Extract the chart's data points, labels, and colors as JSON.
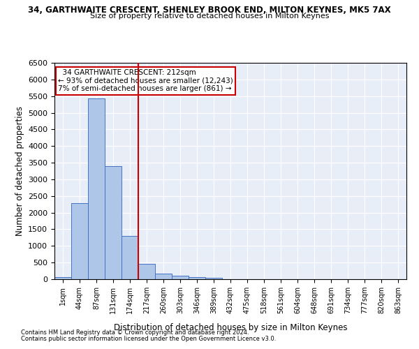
{
  "title_line1": "34, GARTHWAITE CRESCENT, SHENLEY BROOK END, MILTON KEYNES, MK5 7AX",
  "title_line2": "Size of property relative to detached houses in Milton Keynes",
  "xlabel": "Distribution of detached houses by size in Milton Keynes",
  "ylabel": "Number of detached properties",
  "footnote1": "Contains HM Land Registry data © Crown copyright and database right 2024.",
  "footnote2": "Contains public sector information licensed under the Open Government Licence v3.0.",
  "bar_labels": [
    "1sqm",
    "44sqm",
    "87sqm",
    "131sqm",
    "174sqm",
    "217sqm",
    "260sqm",
    "303sqm",
    "346sqm",
    "389sqm",
    "432sqm",
    "475sqm",
    "518sqm",
    "561sqm",
    "604sqm",
    "648sqm",
    "691sqm",
    "734sqm",
    "777sqm",
    "820sqm",
    "863sqm"
  ],
  "bar_values": [
    70,
    2280,
    5430,
    3390,
    1310,
    470,
    160,
    100,
    70,
    40,
    0,
    0,
    0,
    0,
    0,
    0,
    0,
    0,
    0,
    0,
    0
  ],
  "bar_color": "#aec6e8",
  "bar_edge_color": "#4472c4",
  "vline_x_idx": 5,
  "vline_color": "#cc0000",
  "ylim": [
    0,
    6500
  ],
  "yticks": [
    0,
    500,
    1000,
    1500,
    2000,
    2500,
    3000,
    3500,
    4000,
    4500,
    5000,
    5500,
    6000,
    6500
  ],
  "annotation_line1": "  34 GARTHWAITE CRESCENT: 212sqm  ",
  "annotation_line2": "← 93% of detached houses are smaller (12,243)",
  "annotation_line3": "7% of semi-detached houses are larger (861) →",
  "annotation_box_color": "#cc0000",
  "background_color": "#e8eef8"
}
